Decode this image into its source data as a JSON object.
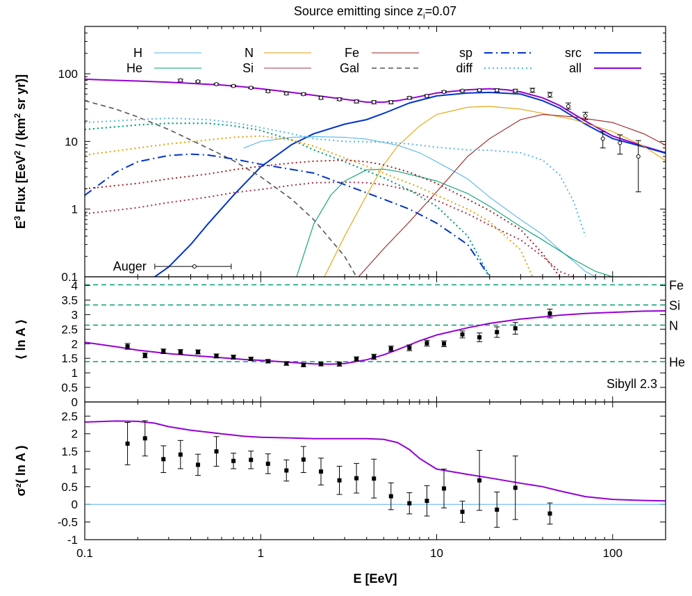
{
  "figure_title": "Source emitting since z",
  "figure_title_sub": "i",
  "figure_title_suffix": "=0.07",
  "colors": {
    "H": "#56b4e9",
    "He": "#009e73",
    "N": "#e69f00",
    "Si": "#a0304a",
    "Fe": "#a02020",
    "Gal": "#555555",
    "sp": "#0033cc",
    "diff": "#56b4e9",
    "src": "#0033cc",
    "all": "#9400d3",
    "dashed_ref": "#009e73",
    "zero_line": "#56b4e9",
    "data": "#000000"
  },
  "chart_data": [
    {
      "type": "line",
      "name": "flux-panel",
      "ylabel": "E³ Flux [EeV² / (km² sr yr)]",
      "ylabel_parts": [
        "E",
        "3",
        " Flux [EeV",
        "2",
        " / (km",
        "2",
        " sr yr)]"
      ],
      "xscale": "log",
      "yscale": "log",
      "xlim": [
        0.1,
        200
      ],
      "ylim": [
        0.1,
        500
      ],
      "yticks": [
        0.1,
        1,
        10,
        100
      ],
      "ytick_labels": [
        "0.1",
        "1",
        "10",
        "100"
      ],
      "grid": false,
      "legend": [
        {
          "label": "H",
          "key": "H",
          "dash": "solid"
        },
        {
          "label": "He",
          "key": "He",
          "dash": "solid"
        },
        {
          "label": "N",
          "key": "N",
          "dash": "solid"
        },
        {
          "label": "Si",
          "key": "Si",
          "dash": "solid"
        },
        {
          "label": "Fe",
          "key": "Fe",
          "dash": "solid"
        },
        {
          "label": "Gal",
          "key": "Gal",
          "dash": "dashed"
        },
        {
          "label": "sp",
          "key": "sp",
          "dash": "dashdot"
        },
        {
          "label": "diff",
          "key": "diff",
          "dash": "dotted"
        },
        {
          "label": "src",
          "key": "src",
          "dash": "solid"
        },
        {
          "label": "all",
          "key": "all",
          "dash": "solid"
        }
      ],
      "annotation": {
        "label": "Auger",
        "x": 0.42,
        "y": 0.142,
        "xerr": [
          0.25,
          0.68
        ]
      },
      "series": [
        {
          "key": "all",
          "dash": "solid",
          "x": [
            0.1,
            0.15,
            0.2,
            0.3,
            0.4,
            0.6,
            0.8,
            1,
            1.5,
            2,
            3,
            4,
            5,
            6,
            8,
            10,
            15,
            20,
            25,
            30,
            40,
            50,
            70,
            100,
            150,
            200
          ],
          "y": [
            83,
            80,
            78,
            75,
            72,
            68,
            64,
            60,
            53,
            48,
            42,
            38,
            38,
            40,
            46,
            52,
            58,
            60,
            58,
            54,
            44,
            34,
            20,
            12,
            8.5,
            6.8
          ]
        },
        {
          "key": "src",
          "dash": "solid",
          "x": [
            0.25,
            0.3,
            0.4,
            0.5,
            0.7,
            1,
            1.5,
            2,
            3,
            4,
            5,
            7,
            10,
            15,
            20,
            30,
            40,
            50,
            70,
            100,
            150,
            200
          ],
          "y": [
            0.1,
            0.14,
            0.3,
            0.6,
            1.6,
            4.2,
            9,
            13,
            18,
            21,
            26,
            37,
            47,
            52,
            53,
            50,
            40,
            31,
            18,
            11,
            8.3,
            6.7
          ]
        },
        {
          "key": "H",
          "dash": "solid",
          "x": [
            0.8,
            1,
            1.5,
            2,
            3,
            4,
            6,
            8,
            10,
            15,
            20,
            30,
            40,
            50,
            60,
            70,
            80
          ],
          "y": [
            8,
            10,
            11.5,
            11.8,
            11.5,
            10.8,
            8.8,
            6.8,
            5,
            2.8,
            1.5,
            0.7,
            0.42,
            0.25,
            0.17,
            0.12,
            0.1
          ]
        },
        {
          "key": "He",
          "dash": "solid",
          "x": [
            1.6,
            2,
            2.5,
            3,
            4,
            5,
            6,
            8,
            10,
            15,
            20,
            30,
            40,
            60,
            80,
            100
          ],
          "y": [
            0.1,
            0.6,
            1.6,
            2.6,
            3.8,
            3.9,
            3.6,
            3,
            2.6,
            1.7,
            1.1,
            0.55,
            0.35,
            0.18,
            0.12,
            0.1
          ]
        },
        {
          "key": "N",
          "dash": "solid",
          "x": [
            2.3,
            3,
            4,
            5,
            6,
            8,
            10,
            15,
            20,
            30,
            40,
            60,
            100,
            150,
            200
          ],
          "y": [
            0.1,
            0.4,
            1.6,
            4.5,
            8.5,
            17,
            25,
            32,
            33,
            30,
            26,
            21,
            14,
            8.5,
            5.2
          ]
        },
        {
          "key": "Fe",
          "dash": "solid",
          "x": [
            3.6,
            5,
            7,
            10,
            15,
            20,
            30,
            40,
            60,
            100,
            150,
            200
          ],
          "y": [
            0.1,
            0.26,
            0.65,
            1.8,
            6,
            11,
            21,
            25,
            23,
            19,
            13,
            8.8
          ]
        },
        {
          "key": "Gal",
          "dash": "dashed",
          "x": [
            0.1,
            0.15,
            0.2,
            0.3,
            0.5,
            0.7,
            1,
            1.5,
            2,
            3,
            3.5
          ],
          "y": [
            40,
            30,
            23,
            15,
            8,
            5.2,
            3,
            1.4,
            0.7,
            0.2,
            0.1
          ]
        },
        {
          "key": "sp",
          "dash": "dashdot",
          "x": [
            0.1,
            0.15,
            0.2,
            0.3,
            0.4,
            0.5,
            0.7,
            1,
            2,
            3,
            5,
            7,
            10,
            15,
            20
          ],
          "y": [
            1.6,
            3.5,
            5,
            6.2,
            6.5,
            6.3,
            5.5,
            4.6,
            3.4,
            2.3,
            1.4,
            1,
            0.62,
            0.3,
            0.1
          ]
        },
        {
          "key": "diff",
          "dash": "dotted",
          "x": [
            0.1,
            0.2,
            0.3,
            0.5,
            0.7,
            1,
            1.5,
            2,
            3,
            5,
            7,
            10,
            15,
            20,
            30,
            40,
            50,
            60,
            70
          ],
          "y": [
            19,
            21,
            22,
            21,
            19,
            16,
            13,
            11,
            10,
            9.8,
            9.2,
            8.2,
            7.5,
            7.4,
            6.8,
            5.3,
            3.2,
            1.3,
            0.4
          ]
        },
        {
          "key": "H",
          "dash": "dotted",
          "x": [
            0.1,
            0.2,
            0.3,
            0.5,
            0.7,
            1,
            1.5,
            2,
            3,
            5,
            7,
            10,
            15,
            20
          ],
          "y": [
            15,
            17.5,
            18.5,
            18.5,
            17,
            14.5,
            10.5,
            7.5,
            5,
            2.9,
            1.9,
            1.1,
            0.4,
            0.1
          ]
        },
        {
          "key": "He",
          "dash": "dotted",
          "x": [
            0.1,
            0.2,
            0.3,
            0.5,
            0.7,
            1,
            1.5,
            2,
            3,
            5,
            7,
            10,
            15,
            20
          ],
          "y": [
            15,
            17.5,
            18.5,
            18.5,
            17,
            14.5,
            10.5,
            7.5,
            5,
            2.9,
            1.9,
            1.1,
            0.4,
            0.1
          ]
        },
        {
          "key": "N",
          "dash": "dotted",
          "x": [
            0.1,
            0.2,
            0.3,
            0.5,
            0.7,
            1,
            1.5,
            2,
            3,
            4,
            6,
            8,
            10,
            15,
            20,
            30,
            35
          ],
          "y": [
            6.3,
            8,
            9.2,
            10.5,
            11.5,
            12,
            10.5,
            8.5,
            5.7,
            4.3,
            2.8,
            2.1,
            1.6,
            1,
            0.65,
            0.25,
            0.1
          ]
        },
        {
          "key": "Fe",
          "dash": "dotted",
          "x": [
            0.1,
            0.2,
            0.3,
            0.5,
            0.7,
            1,
            1.5,
            2,
            3,
            4,
            5,
            7,
            10,
            15,
            20,
            30,
            40,
            50
          ],
          "y": [
            2,
            2.4,
            2.8,
            3.3,
            3.8,
            4.3,
            4.8,
            5.1,
            5.3,
            5,
            4.5,
            3.5,
            2.4,
            1.4,
            0.95,
            0.5,
            0.22,
            0.1
          ]
        },
        {
          "key": "Si",
          "dash": "dotted",
          "x": [
            0.1,
            0.2,
            0.3,
            0.5,
            0.7,
            1,
            1.5,
            2,
            3,
            4,
            5,
            7,
            10,
            15,
            20,
            30,
            40,
            50,
            60
          ],
          "y": [
            0.85,
            1.05,
            1.25,
            1.5,
            1.75,
            1.95,
            2.25,
            2.45,
            2.5,
            2.45,
            2.3,
            1.9,
            1.35,
            0.85,
            0.58,
            0.35,
            0.2,
            0.12,
            0.1
          ]
        }
      ],
      "data_series": {
        "label": "Auger",
        "x": [
          0.35,
          0.44,
          0.56,
          0.7,
          0.88,
          1.1,
          1.4,
          1.75,
          2.2,
          2.8,
          3.5,
          4.4,
          5.5,
          7,
          8.8,
          11,
          14,
          17.5,
          22,
          28,
          35,
          44,
          56,
          70,
          88,
          110,
          140
        ],
        "y": [
          80,
          77,
          70,
          66,
          62,
          55,
          51,
          50,
          44,
          42,
          39,
          38,
          38,
          44,
          47,
          54,
          56,
          57,
          57,
          56,
          57,
          49,
          33,
          24,
          11,
          9.5,
          6
        ],
        "yerr_lo": [
          3,
          2,
          2,
          2,
          2,
          2,
          2,
          2,
          2,
          2,
          2,
          2,
          2,
          2,
          2,
          2,
          2,
          2,
          3,
          3,
          4,
          4,
          3,
          3,
          3,
          3,
          4.2
        ],
        "yerr_hi": [
          3,
          2,
          2,
          2,
          2,
          2,
          2,
          2,
          2,
          2,
          2,
          2,
          2,
          2,
          2,
          2,
          2,
          2,
          3,
          3,
          4,
          4,
          4,
          3,
          3,
          3,
          4.3
        ]
      }
    },
    {
      "type": "line",
      "name": "lnA-panel",
      "ylabel": "⟨ ln A ⟩",
      "xscale": "log",
      "xlim": [
        0.1,
        200
      ],
      "ylim": [
        0,
        4.3
      ],
      "yticks": [
        0,
        0.5,
        1,
        1.5,
        2,
        2.5,
        3,
        3.5,
        4
      ],
      "ytick_labels": [
        "0",
        "0.5",
        "1",
        "1.5",
        "2",
        "2.5",
        "3",
        "3.5",
        "4"
      ],
      "grid": false,
      "reference_lines": [
        {
          "label": "He",
          "y": 1.386
        },
        {
          "label": "N",
          "y": 2.639
        },
        {
          "label": "Si",
          "y": 3.332
        },
        {
          "label": "Fe",
          "y": 4.025
        }
      ],
      "annotation": "Sibyll 2.3",
      "series": [
        {
          "key": "all",
          "dash": "solid",
          "x": [
            0.1,
            0.15,
            0.2,
            0.3,
            0.4,
            0.6,
            0.8,
            1,
            1.5,
            2,
            2.5,
            3,
            4,
            5,
            6,
            7,
            8,
            10,
            15,
            20,
            30,
            40,
            50,
            70,
            100,
            150,
            200
          ],
          "y": [
            2.05,
            1.9,
            1.78,
            1.66,
            1.6,
            1.52,
            1.46,
            1.43,
            1.36,
            1.31,
            1.3,
            1.32,
            1.45,
            1.62,
            1.8,
            1.96,
            2.1,
            2.3,
            2.55,
            2.7,
            2.85,
            2.92,
            2.98,
            3.04,
            3.08,
            3.12,
            3.13
          ]
        }
      ],
      "data_series": {
        "x": [
          0.175,
          0.22,
          0.28,
          0.35,
          0.44,
          0.56,
          0.7,
          0.88,
          1.1,
          1.4,
          1.75,
          2.2,
          2.8,
          3.5,
          4.4,
          5.5,
          7,
          8.8,
          11,
          14,
          17.5,
          22,
          28,
          44
        ],
        "y": [
          1.91,
          1.6,
          1.74,
          1.72,
          1.72,
          1.58,
          1.54,
          1.48,
          1.4,
          1.32,
          1.27,
          1.3,
          1.3,
          1.48,
          1.55,
          1.83,
          1.86,
          2.02,
          2.0,
          2.32,
          2.22,
          2.4,
          2.53,
          3.04
        ],
        "yerr": [
          0.1,
          0.08,
          0.08,
          0.08,
          0.07,
          0.07,
          0.07,
          0.06,
          0.06,
          0.06,
          0.06,
          0.06,
          0.07,
          0.07,
          0.09,
          0.09,
          0.1,
          0.1,
          0.1,
          0.12,
          0.15,
          0.18,
          0.2,
          0.15
        ]
      }
    },
    {
      "type": "line",
      "name": "variance-panel",
      "ylabel": "σ²( ln A )",
      "xscale": "log",
      "xlabel": "E [EeV]",
      "xlim": [
        0.1,
        200
      ],
      "ylim": [
        -1,
        2.9
      ],
      "xticks": [
        0.1,
        1,
        10,
        100
      ],
      "xtick_labels": [
        "0.1",
        "1",
        "10",
        "100"
      ],
      "yticks": [
        -1,
        -0.5,
        0,
        0.5,
        1,
        1.5,
        2,
        2.5
      ],
      "ytick_labels": [
        "-1",
        "-0.5",
        "0",
        "0.5",
        "1",
        "1.5",
        "2",
        "2.5"
      ],
      "grid": false,
      "zero_line": 0,
      "series": [
        {
          "key": "all",
          "dash": "solid",
          "x": [
            0.1,
            0.15,
            0.2,
            0.25,
            0.3,
            0.4,
            0.6,
            0.8,
            1,
            1.5,
            2,
            3,
            4,
            5,
            6,
            7,
            8,
            10,
            15,
            20,
            30,
            40,
            50,
            70,
            100,
            150,
            200
          ],
          "y": [
            2.33,
            2.36,
            2.35,
            2.3,
            2.2,
            2.1,
            2.0,
            1.93,
            1.9,
            1.88,
            1.86,
            1.86,
            1.86,
            1.84,
            1.75,
            1.55,
            1.3,
            1.0,
            0.85,
            0.75,
            0.6,
            0.5,
            0.38,
            0.22,
            0.14,
            0.11,
            0.1
          ]
        }
      ],
      "data_series": {
        "x": [
          0.175,
          0.22,
          0.28,
          0.35,
          0.44,
          0.56,
          0.7,
          0.88,
          1.1,
          1.4,
          1.75,
          2.2,
          2.8,
          3.5,
          4.4,
          5.5,
          7,
          8.8,
          11,
          14,
          17.5,
          22,
          28,
          44
        ],
        "y": [
          1.72,
          1.87,
          1.28,
          1.41,
          1.12,
          1.5,
          1.23,
          1.26,
          1.15,
          0.96,
          1.27,
          0.93,
          0.68,
          0.74,
          0.73,
          0.23,
          0.03,
          0.1,
          0.45,
          -0.21,
          0.68,
          -0.15,
          0.47,
          -0.26
        ],
        "yerr": [
          0.6,
          0.5,
          0.38,
          0.4,
          0.3,
          0.42,
          0.22,
          0.25,
          0.28,
          0.3,
          0.37,
          0.38,
          0.4,
          0.42,
          0.55,
          0.38,
          0.3,
          0.43,
          0.55,
          0.3,
          0.85,
          0.5,
          0.9,
          0.3
        ]
      }
    }
  ]
}
